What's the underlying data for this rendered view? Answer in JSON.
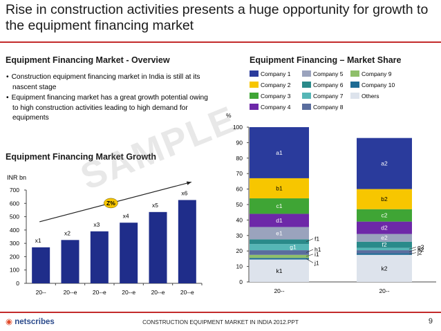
{
  "page": {
    "title": "Rise in construction activities presents a huge opportunity for growth to the equipment financing market",
    "overview_heading": "Equipment Financing Market - Overview",
    "bullets": [
      "Construction equipment financing market in India is still at its nascent stage",
      "Equipment financing market has a great growth potential owing to high construction activities leading to high demand for equipments"
    ],
    "watermark": "SAMPLE",
    "footer_brand": "netscribes",
    "footer_text": "CONSTRUCTION EQUIPMENT MARKET IN INDIA 2012.PPT",
    "page_number": "9",
    "accent_color": "#c22a2a"
  },
  "chart_data": [
    {
      "type": "bar",
      "title": "Equipment Financing Market Growth",
      "ylabel": "INR bn",
      "ylim": [
        0,
        700
      ],
      "yticks": [
        0,
        100,
        200,
        300,
        400,
        500,
        600,
        700
      ],
      "categories": [
        "20--",
        "20--e",
        "20--e",
        "20--e",
        "20--e",
        "20--e"
      ],
      "values": [
        270,
        325,
        390,
        455,
        535,
        625
      ],
      "data_labels": [
        "x1",
        "x2",
        "x3",
        "x4",
        "x5",
        "x6"
      ],
      "annotation": "Z%",
      "color": "#1f2d8a"
    },
    {
      "type": "stacked-bar",
      "title": "Equipment Financing – Market Share",
      "ylabel": "%",
      "ylim": [
        0,
        100
      ],
      "yticks": [
        0,
        10,
        20,
        30,
        40,
        50,
        60,
        70,
        80,
        90,
        100
      ],
      "categories": [
        "20--",
        "20--"
      ],
      "legend": [
        {
          "name": "Company 1",
          "color": "#2a3b9c"
        },
        {
          "name": "Company 5",
          "color": "#9aa3bd"
        },
        {
          "name": "Company 9",
          "color": "#8fbf6a"
        },
        {
          "name": "Company 2",
          "color": "#f7c600"
        },
        {
          "name": "Company 6",
          "color": "#2a8a8a"
        },
        {
          "name": "Company 10",
          "color": "#1d6b94"
        },
        {
          "name": "Company 3",
          "color": "#3fa535"
        },
        {
          "name": "Company 7",
          "color": "#56b6b6"
        },
        {
          "name": "Others",
          "color": "#dde3ec"
        },
        {
          "name": "Company 4",
          "color": "#6d28a8"
        },
        {
          "name": "Company 8",
          "color": "#5a6d9e"
        }
      ],
      "series": [
        {
          "name": "Others",
          "color": "#dde3ec",
          "labels": [
            "k1",
            "k2"
          ],
          "values": [
            14.5,
            17.5
          ]
        },
        {
          "name": "Company 10",
          "color": "#1d6b94",
          "labels": [
            "j1",
            "j2"
          ],
          "values": [
            1,
            1
          ]
        },
        {
          "name": "Company 9",
          "color": "#8fbf6a",
          "labels": [
            "i1",
            ""
          ],
          "values": [
            2,
            0
          ]
        },
        {
          "name": "Company 8",
          "color": "#5a6d9e",
          "labels": [
            "h1",
            "h2"
          ],
          "values": [
            3,
            2
          ]
        },
        {
          "name": "Company 7",
          "color": "#56b6b6",
          "labels": [
            "g1",
            "g2"
          ],
          "values": [
            4,
            1.5
          ]
        },
        {
          "name": "Company 6",
          "color": "#2a8a8a",
          "labels": [
            "f1",
            "f2"
          ],
          "values": [
            3,
            4
          ]
        },
        {
          "name": "Company 5",
          "color": "#9aa3bd",
          "labels": [
            "e1",
            "e2"
          ],
          "values": [
            8,
            5
          ]
        },
        {
          "name": "Company 4",
          "color": "#6d28a8",
          "labels": [
            "d1",
            "d2"
          ],
          "values": [
            8.5,
            8
          ]
        },
        {
          "name": "Company 3",
          "color": "#3fa535",
          "labels": [
            "c1",
            "c2"
          ],
          "values": [
            10,
            8
          ]
        },
        {
          "name": "Company 2",
          "color": "#f7c600",
          "labels": [
            "b1",
            "b2"
          ],
          "values": [
            13,
            13
          ]
        },
        {
          "name": "Company 1",
          "color": "#2a3b9c",
          "labels": [
            "a1",
            "a2"
          ],
          "values": [
            33,
            33
          ]
        }
      ]
    }
  ]
}
